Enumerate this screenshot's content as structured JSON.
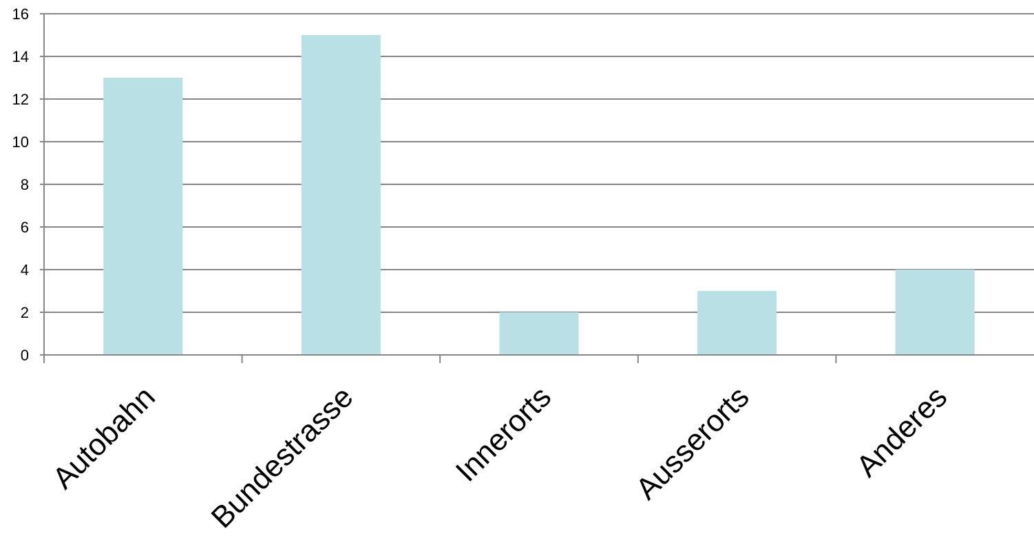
{
  "chart_data": {
    "type": "bar",
    "title": "",
    "xlabel": "",
    "ylabel": "",
    "categories": [
      "Autobahn",
      "Bundestrasse",
      "Innerorts",
      "Ausserorts",
      "Anderes"
    ],
    "values": [
      13,
      15,
      2,
      3,
      4
    ],
    "ylim": [
      0,
      16
    ],
    "yticks": [
      0,
      2,
      4,
      6,
      8,
      10,
      12,
      14,
      16
    ],
    "grid": true,
    "legend": "none",
    "colors": {
      "bar": "#b9e0e4",
      "grid": "#868686",
      "axis": "#868686",
      "text": "#000000"
    }
  }
}
